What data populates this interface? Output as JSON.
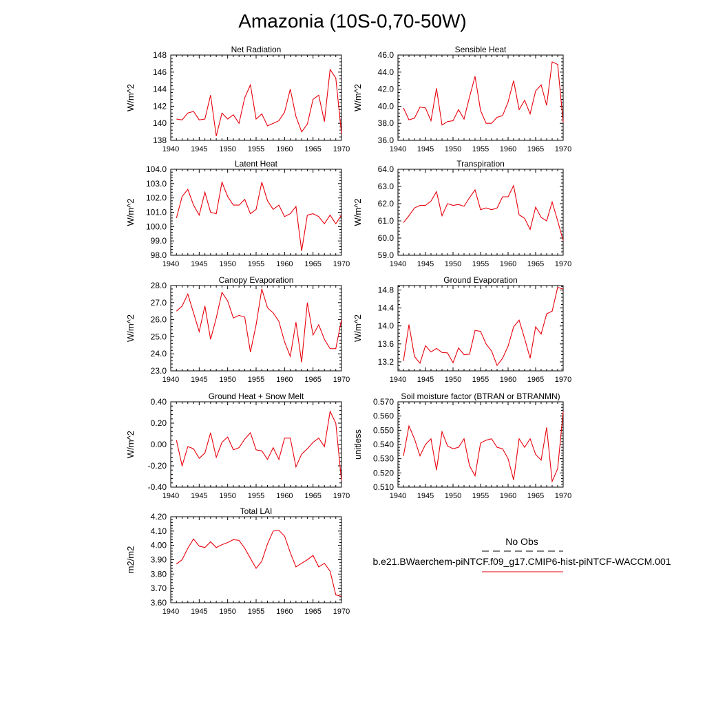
{
  "title": "Amazonia (10S-0,70-50W)",
  "x_years": [
    1941,
    1942,
    1943,
    1944,
    1945,
    1946,
    1947,
    1948,
    1949,
    1950,
    1951,
    1952,
    1953,
    1954,
    1955,
    1956,
    1957,
    1958,
    1959,
    1960,
    1961,
    1962,
    1963,
    1964,
    1965,
    1966,
    1967,
    1968,
    1969,
    1970
  ],
  "line_color": "#e8000b",
  "chart_data": [
    {
      "type": "line",
      "title": "Net Radiation",
      "ylabel": "W/m^2",
      "xlim": [
        1940,
        1970
      ],
      "ylim": [
        138,
        148
      ],
      "yticks": [
        "138",
        "140",
        "142",
        "144",
        "146",
        "148"
      ],
      "xticks": [
        "1940",
        "1945",
        "1950",
        "1955",
        "1960",
        "1965",
        "1970"
      ],
      "values": [
        140.5,
        140.4,
        141.2,
        141.4,
        140.4,
        140.5,
        143.3,
        138.5,
        141.2,
        140.5,
        141.0,
        140.0,
        143.0,
        144.5,
        140.5,
        141.1,
        139.7,
        140.0,
        140.3,
        141.3,
        144.0,
        140.8,
        139.0,
        139.9,
        142.8,
        143.3,
        140.2,
        146.3,
        145.3,
        138.8
      ]
    },
    {
      "type": "line",
      "title": "Sensible Heat",
      "ylabel": "W/m^2",
      "xlim": [
        1940,
        1970
      ],
      "ylim": [
        36.0,
        46.0
      ],
      "yticks": [
        "36.0",
        "38.0",
        "40.0",
        "42.0",
        "44.0",
        "46.0"
      ],
      "xticks": [
        "1940",
        "1945",
        "1950",
        "1955",
        "1960",
        "1965",
        "1970"
      ],
      "values": [
        39.8,
        38.4,
        38.6,
        39.9,
        39.8,
        38.3,
        42.1,
        37.8,
        38.2,
        38.3,
        39.6,
        38.5,
        41.1,
        43.5,
        39.5,
        38.0,
        38.0,
        38.7,
        38.9,
        40.5,
        43.0,
        39.6,
        40.7,
        39.1,
        41.8,
        42.5,
        40.1,
        45.2,
        44.9,
        38.1
      ]
    },
    {
      "type": "line",
      "title": "Latent Heat",
      "ylabel": "W/m^2",
      "xlim": [
        1940,
        1970
      ],
      "ylim": [
        98.0,
        104.0
      ],
      "yticks": [
        "98.0",
        "99.0",
        "100.0",
        "101.0",
        "102.0",
        "103.0",
        "104.0"
      ],
      "xticks": [
        "1940",
        "1945",
        "1950",
        "1955",
        "1960",
        "1965",
        "1970"
      ],
      "values": [
        100.6,
        102.1,
        102.6,
        101.5,
        100.8,
        102.4,
        101.0,
        100.9,
        103.1,
        102.1,
        101.5,
        101.5,
        101.9,
        100.9,
        101.2,
        103.1,
        101.8,
        101.2,
        101.5,
        100.7,
        100.9,
        101.4,
        98.3,
        100.8,
        100.9,
        100.7,
        100.2,
        100.8,
        100.2,
        100.8
      ]
    },
    {
      "type": "line",
      "title": "Transpiration",
      "ylabel": "W/m^2",
      "xlim": [
        1940,
        1970
      ],
      "ylim": [
        59.0,
        64.0
      ],
      "yticks": [
        "59.0",
        "60.0",
        "61.0",
        "62.0",
        "63.0",
        "64.0"
      ],
      "xticks": [
        "1940",
        "1945",
        "1950",
        "1955",
        "1960",
        "1965",
        "1970"
      ],
      "values": [
        60.9,
        61.3,
        61.75,
        61.9,
        61.9,
        62.15,
        62.7,
        61.3,
        62.0,
        61.9,
        61.95,
        61.85,
        62.35,
        62.8,
        61.65,
        61.75,
        61.65,
        61.75,
        62.4,
        62.4,
        63.05,
        61.35,
        61.15,
        60.5,
        61.8,
        61.2,
        61.0,
        62.1,
        61.0,
        59.85
      ]
    },
    {
      "type": "line",
      "title": "Canopy Evaporation",
      "ylabel": "W/m^2",
      "xlim": [
        1940,
        1970
      ],
      "ylim": [
        23.0,
        28.0
      ],
      "yticks": [
        "23.0",
        "24.0",
        "25.0",
        "26.0",
        "27.0",
        "28.0"
      ],
      "xticks": [
        "1940",
        "1945",
        "1950",
        "1955",
        "1960",
        "1965",
        "1970"
      ],
      "values": [
        26.5,
        26.8,
        27.5,
        26.4,
        25.3,
        26.8,
        24.85,
        26.1,
        27.6,
        27.1,
        26.1,
        26.25,
        26.15,
        24.1,
        25.7,
        27.8,
        26.7,
        26.4,
        25.9,
        24.7,
        23.85,
        25.85,
        23.5,
        27.0,
        25.1,
        25.7,
        24.85,
        24.3,
        24.3,
        26.0
      ]
    },
    {
      "type": "line",
      "title": "Ground Evaporation",
      "ylabel": "W/m^2",
      "xlim": [
        1940,
        1970
      ],
      "ylim": [
        13.0,
        14.9
      ],
      "yticks": [
        "13.2",
        "13.6",
        "14.0",
        "14.4",
        "14.8"
      ],
      "ytick_values": [
        13.2,
        13.6,
        14.0,
        14.4,
        14.8
      ],
      "xticks": [
        "1940",
        "1945",
        "1950",
        "1955",
        "1960",
        "1965",
        "1970"
      ],
      "values": [
        13.22,
        14.03,
        13.32,
        13.17,
        13.56,
        13.42,
        13.5,
        13.41,
        13.4,
        13.18,
        13.51,
        13.36,
        13.37,
        13.9,
        13.88,
        13.6,
        13.44,
        13.12,
        13.28,
        13.55,
        13.98,
        14.13,
        13.72,
        13.28,
        13.98,
        13.82,
        14.27,
        14.33,
        14.86,
        14.82
      ]
    },
    {
      "type": "line",
      "title": "Ground Heat + Snow Melt",
      "ylabel": "W/m^2",
      "xlim": [
        1940,
        1970
      ],
      "ylim": [
        -0.4,
        0.4
      ],
      "yticks": [
        "-0.40",
        "-0.20",
        "0.00",
        "0.20",
        "0.40"
      ],
      "xticks": [
        "1940",
        "1945",
        "1950",
        "1955",
        "1960",
        "1965",
        "1970"
      ],
      "values": [
        0.04,
        -0.2,
        -0.02,
        -0.04,
        -0.13,
        -0.08,
        0.11,
        -0.12,
        0.02,
        0.07,
        -0.05,
        -0.03,
        0.05,
        0.11,
        -0.05,
        -0.06,
        -0.14,
        -0.03,
        -0.14,
        0.06,
        0.06,
        -0.21,
        -0.09,
        -0.04,
        0.02,
        0.06,
        -0.02,
        0.31,
        0.2,
        -0.34
      ]
    },
    {
      "type": "line",
      "title": "Soil moisture factor (BTRAN or BTRANMN)",
      "ylabel": "unitless",
      "xlim": [
        1940,
        1970
      ],
      "ylim": [
        0.51,
        0.57
      ],
      "yticks": [
        "0.510",
        "0.520",
        "0.530",
        "0.540",
        "0.550",
        "0.560",
        "0.570"
      ],
      "xticks": [
        "1940",
        "1945",
        "1950",
        "1955",
        "1960",
        "1965",
        "1970"
      ],
      "values": [
        0.532,
        0.553,
        0.544,
        0.532,
        0.54,
        0.544,
        0.522,
        0.549,
        0.539,
        0.537,
        0.538,
        0.544,
        0.525,
        0.518,
        0.541,
        0.543,
        0.544,
        0.538,
        0.537,
        0.53,
        0.515,
        0.544,
        0.538,
        0.544,
        0.533,
        0.529,
        0.552,
        0.514,
        0.523,
        0.563
      ]
    },
    {
      "type": "line",
      "title": "Total LAI",
      "ylabel": "m2/m2",
      "xlim": [
        1940,
        1970
      ],
      "ylim": [
        3.6,
        4.2
      ],
      "yticks": [
        "3.60",
        "3.70",
        "3.80",
        "3.90",
        "4.00",
        "4.10",
        "4.20"
      ],
      "xticks": [
        "1940",
        "1945",
        "1950",
        "1955",
        "1960",
        "1965",
        "1970"
      ],
      "values": [
        3.87,
        3.9,
        3.98,
        4.045,
        3.995,
        3.985,
        4.025,
        3.985,
        4.005,
        4.02,
        4.04,
        4.035,
        3.98,
        3.91,
        3.84,
        3.89,
        4.01,
        4.1,
        4.105,
        4.065,
        3.95,
        3.85,
        3.875,
        3.9,
        3.93,
        3.85,
        3.875,
        3.82,
        3.655,
        3.645
      ]
    }
  ],
  "legend": {
    "obs_label": "No Obs",
    "case_label": "b.e21.BWaerchem-piNTCF.f09_g17.CMIP6-hist-piNTCF-WACCM.001"
  }
}
